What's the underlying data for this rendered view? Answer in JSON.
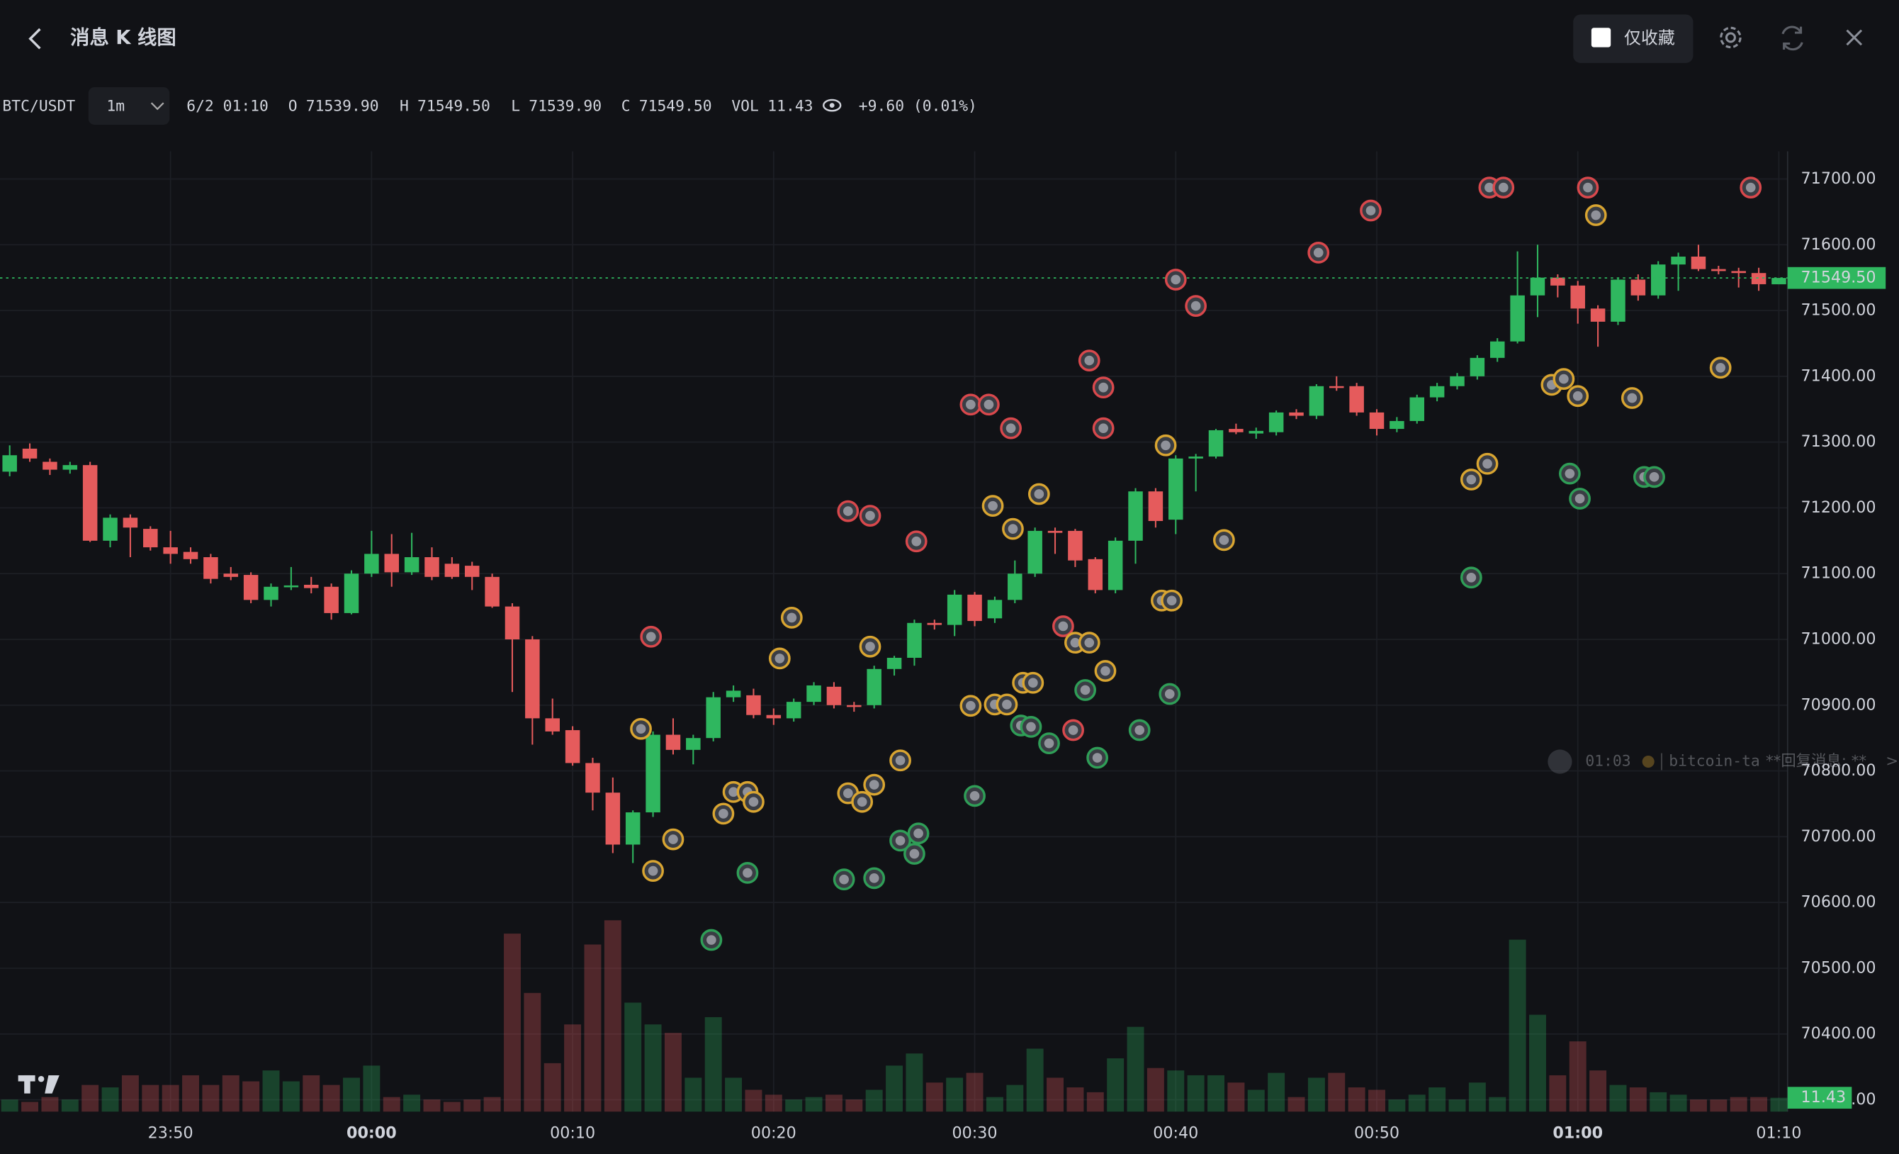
{
  "header": {
    "title": "消息 K 线图",
    "favorites_only": "仅收藏"
  },
  "legend_bar": {
    "symbol": "BTC/USDT",
    "interval": "1m",
    "time": "6/2 01:10",
    "fields": [
      {
        "key": "O",
        "value": "71539.90"
      },
      {
        "key": "H",
        "value": "71549.50"
      },
      {
        "key": "L",
        "value": "71539.90"
      },
      {
        "key": "C",
        "value": "71549.50"
      },
      {
        "key": "VOL",
        "value": "11.43"
      }
    ],
    "change": "+9.60 (0.01%)"
  },
  "message_preview": {
    "time": "01:03",
    "author": "bitcoin-ta",
    "text": "**回复消息: **",
    "more": ">"
  },
  "chart_data": {
    "type": "candlestick",
    "up_color": "#2fb75f",
    "down_color": "#e55b5c",
    "grid": true,
    "ylim": [
      70282,
      71742
    ],
    "yticks": [
      {
        "value": 70300,
        "label": "70300.00"
      },
      {
        "value": 70400,
        "label": "70400.00"
      },
      {
        "value": 70500,
        "label": "70500.00"
      },
      {
        "value": 70600,
        "label": "70600.00"
      },
      {
        "value": 70700,
        "label": "70700.00"
      },
      {
        "value": 70800,
        "label": "70800.00"
      },
      {
        "value": 70900,
        "label": "70900.00"
      },
      {
        "value": 71000,
        "label": "71000.00"
      },
      {
        "value": 71100,
        "label": "71100.00"
      },
      {
        "value": 71200,
        "label": "71200.00"
      },
      {
        "value": 71300,
        "label": "71300.00"
      },
      {
        "value": 71400,
        "label": "71400.00"
      },
      {
        "value": 71500,
        "label": "71500.00"
      },
      {
        "value": 71600,
        "label": "71600.00"
      },
      {
        "value": 71700,
        "label": "71700.00"
      }
    ],
    "xticks": [
      {
        "index": 8,
        "label": "23:50"
      },
      {
        "index": 18,
        "label": "00:00",
        "bold": true
      },
      {
        "index": 28,
        "label": "00:10"
      },
      {
        "index": 38,
        "label": "00:20"
      },
      {
        "index": 48,
        "label": "00:30"
      },
      {
        "index": 58,
        "label": "00:40"
      },
      {
        "index": 68,
        "label": "00:50"
      },
      {
        "index": 78,
        "label": "01:00",
        "bold": true
      },
      {
        "index": 88,
        "label": "01:10"
      }
    ],
    "last_price_label": "71549.50",
    "last_volume_label": "11.43",
    "volume_ylim": [
      0,
      160
    ],
    "ohlc": [
      [
        71255,
        71295,
        71248,
        71280
      ],
      [
        71290,
        71298,
        71270,
        71275
      ],
      [
        71270,
        71275,
        71250,
        71258
      ],
      [
        71258,
        71270,
        71252,
        71265
      ],
      [
        71265,
        71270,
        71148,
        71150
      ],
      [
        71150,
        71190,
        71140,
        71185
      ],
      [
        71185,
        71190,
        71125,
        71170
      ],
      [
        71168,
        71172,
        71135,
        71140
      ],
      [
        71140,
        71165,
        71115,
        71130
      ],
      [
        71133,
        71140,
        71115,
        71122
      ],
      [
        71125,
        71130,
        71085,
        71092
      ],
      [
        71100,
        71110,
        71090,
        71095
      ],
      [
        71098,
        71102,
        71055,
        71060
      ],
      [
        71060,
        71085,
        71050,
        71080
      ],
      [
        71080,
        71110,
        71075,
        71082
      ],
      [
        71083,
        71095,
        71070,
        71078
      ],
      [
        71080,
        71085,
        71030,
        71040
      ],
      [
        71040,
        71105,
        71038,
        71100
      ],
      [
        71100,
        71165,
        71095,
        71130
      ],
      [
        71130,
        71160,
        71080,
        71102
      ],
      [
        71102,
        71162,
        71098,
        71125
      ],
      [
        71125,
        71140,
        71090,
        71095
      ],
      [
        71115,
        71125,
        71092,
        71095
      ],
      [
        71112,
        71118,
        71075,
        71095
      ],
      [
        71095,
        71100,
        71048,
        71050
      ],
      [
        71050,
        71055,
        70920,
        71000
      ],
      [
        71000,
        71005,
        70840,
        70880
      ],
      [
        70880,
        70910,
        70855,
        70860
      ],
      [
        70862,
        70868,
        70808,
        70812
      ],
      [
        70812,
        70820,
        70740,
        70767
      ],
      [
        70767,
        70790,
        70675,
        70688
      ],
      [
        70688,
        70740,
        70660,
        70737
      ],
      [
        70737,
        70860,
        70730,
        70855
      ],
      [
        70855,
        70880,
        70825,
        70832
      ],
      [
        70832,
        70855,
        70810,
        70850
      ],
      [
        70850,
        70920,
        70845,
        70912
      ],
      [
        70912,
        70930,
        70905,
        70922
      ],
      [
        70915,
        70925,
        70880,
        70885
      ],
      [
        70885,
        70895,
        70870,
        70880
      ],
      [
        70880,
        70910,
        70875,
        70905
      ],
      [
        70905,
        70935,
        70900,
        70930
      ],
      [
        70928,
        70935,
        70895,
        70900
      ],
      [
        70900,
        70905,
        70890,
        70898
      ],
      [
        70900,
        70960,
        70895,
        70955
      ],
      [
        70955,
        70975,
        70945,
        70972
      ],
      [
        70972,
        71030,
        70960,
        71025
      ],
      [
        71025,
        71030,
        71015,
        71022
      ],
      [
        71022,
        71075,
        71005,
        71068
      ],
      [
        71068,
        71072,
        71020,
        71028
      ],
      [
        71032,
        71065,
        71025,
        71060
      ],
      [
        71060,
        71120,
        71055,
        71100
      ],
      [
        71100,
        71170,
        71095,
        71165
      ],
      [
        71165,
        71170,
        71130,
        71162
      ],
      [
        71165,
        71168,
        71110,
        71120
      ],
      [
        71122,
        71125,
        71070,
        71075
      ],
      [
        71075,
        71155,
        71070,
        71150
      ],
      [
        71150,
        71230,
        71115,
        71225
      ],
      [
        71225,
        71230,
        71170,
        71180
      ],
      [
        71182,
        71280,
        71160,
        71275
      ],
      [
        71275,
        71282,
        71225,
        71278
      ],
      [
        71278,
        71320,
        71275,
        71318
      ],
      [
        71320,
        71328,
        71312,
        71315
      ],
      [
        71313,
        71322,
        71305,
        71317
      ],
      [
        71315,
        71348,
        71310,
        71345
      ],
      [
        71345,
        71350,
        71335,
        71340
      ],
      [
        71340,
        71388,
        71335,
        71385
      ],
      [
        71385,
        71400,
        71378,
        71383
      ],
      [
        71385,
        71390,
        71340,
        71345
      ],
      [
        71345,
        71350,
        71310,
        71320
      ],
      [
        71320,
        71338,
        71315,
        71332
      ],
      [
        71332,
        71372,
        71328,
        71368
      ],
      [
        71368,
        71390,
        71362,
        71385
      ],
      [
        71385,
        71405,
        71380,
        71400
      ],
      [
        71400,
        71432,
        71395,
        71428
      ],
      [
        71428,
        71458,
        71422,
        71453
      ],
      [
        71453,
        71590,
        71450,
        71523
      ],
      [
        71523,
        71600,
        71490,
        71550
      ],
      [
        71550,
        71555,
        71520,
        71538
      ],
      [
        71538,
        71545,
        71480,
        71503
      ],
      [
        71503,
        71508,
        71445,
        71483
      ],
      [
        71483,
        71550,
        71478,
        71547
      ],
      [
        71547,
        71555,
        71515,
        71523
      ],
      [
        71523,
        71575,
        71518,
        71570
      ],
      [
        71570,
        71588,
        71530,
        71582
      ],
      [
        71582,
        71600,
        71560,
        71563
      ],
      [
        71563,
        71568,
        71555,
        71560
      ],
      [
        71560,
        71565,
        71535,
        71557
      ],
      [
        71557,
        71565,
        71530,
        71540
      ],
      [
        71539.9,
        71549.5,
        71539.9,
        71549.5
      ]
    ],
    "volume": [
      10,
      8,
      12,
      10,
      22,
      20,
      30,
      22,
      22,
      30,
      22,
      30,
      25,
      34,
      25,
      30,
      22,
      28,
      38,
      12,
      14,
      10,
      8,
      10,
      12,
      147,
      98,
      40,
      72,
      138,
      158,
      90,
      72,
      65,
      28,
      78,
      28,
      18,
      14,
      10,
      12,
      14,
      10,
      18,
      38,
      48,
      24,
      28,
      32,
      12,
      22,
      52,
      28,
      20,
      16,
      44,
      70,
      36,
      34,
      30,
      30,
      24,
      18,
      32,
      12,
      28,
      32,
      20,
      18,
      10,
      14,
      20,
      10,
      24,
      12,
      142,
      80,
      30,
      58,
      34,
      22,
      20,
      16,
      14,
      10,
      10,
      12,
      12,
      11.43
    ],
    "markers": [
      {
        "color": "#d9484c",
        "points": [
          [
            31.9,
            71004
          ],
          [
            41.7,
            71195
          ],
          [
            42.8,
            71188
          ],
          [
            45.1,
            71149
          ],
          [
            47.8,
            71357
          ],
          [
            48.7,
            71357
          ],
          [
            49.8,
            71321
          ],
          [
            53.7,
            71424
          ],
          [
            54.4,
            71383
          ],
          [
            54.4,
            71321
          ],
          [
            52.4,
            71020
          ],
          [
            52.9,
            70862
          ],
          [
            58.0,
            71547
          ],
          [
            59.0,
            71507
          ],
          [
            65.1,
            71588
          ],
          [
            67.7,
            71652
          ],
          [
            73.6,
            71687
          ],
          [
            74.3,
            71687
          ],
          [
            78.5,
            71687
          ],
          [
            86.6,
            71687
          ]
        ]
      },
      {
        "color": "#d9a531",
        "points": [
          [
            31.4,
            70864
          ],
          [
            32.0,
            70648
          ],
          [
            33.0,
            70696
          ],
          [
            35.5,
            70735
          ],
          [
            36.0,
            70768
          ],
          [
            36.7,
            70768
          ],
          [
            37.0,
            70753
          ],
          [
            38.3,
            70971
          ],
          [
            38.9,
            71033
          ],
          [
            41.7,
            70766
          ],
          [
            42.4,
            70753
          ],
          [
            43.0,
            70779
          ],
          [
            44.3,
            70816
          ],
          [
            42.8,
            70989
          ],
          [
            47.8,
            70899
          ],
          [
            49.0,
            70901
          ],
          [
            49.6,
            70901
          ],
          [
            50.4,
            70934
          ],
          [
            50.9,
            70934
          ],
          [
            48.9,
            71203
          ],
          [
            49.9,
            71168
          ],
          [
            51.2,
            71221
          ],
          [
            53.0,
            70995
          ],
          [
            53.7,
            70995
          ],
          [
            54.5,
            70952
          ],
          [
            57.5,
            71295
          ],
          [
            57.3,
            71059
          ],
          [
            57.8,
            71059
          ],
          [
            60.4,
            71151
          ],
          [
            72.7,
            71243
          ],
          [
            73.5,
            71267
          ],
          [
            76.7,
            71387
          ],
          [
            77.3,
            71396
          ],
          [
            78.0,
            71370
          ],
          [
            78.9,
            71645
          ],
          [
            80.7,
            71367
          ],
          [
            85.1,
            71413
          ]
        ]
      },
      {
        "color": "#2f9e57",
        "points": [
          [
            34.9,
            70543
          ],
          [
            36.7,
            70645
          ],
          [
            41.5,
            70635
          ],
          [
            43.0,
            70637
          ],
          [
            44.3,
            70694
          ],
          [
            45.2,
            70705
          ],
          [
            45.0,
            70674
          ],
          [
            48.0,
            70762
          ],
          [
            50.3,
            70869
          ],
          [
            50.8,
            70867
          ],
          [
            51.7,
            70842
          ],
          [
            53.5,
            70923
          ],
          [
            54.1,
            70820
          ],
          [
            56.2,
            70862
          ],
          [
            57.7,
            70917
          ],
          [
            72.7,
            71094
          ],
          [
            77.6,
            71252
          ],
          [
            78.1,
            71214
          ],
          [
            81.3,
            71247
          ],
          [
            81.8,
            71247
          ]
        ]
      }
    ]
  }
}
